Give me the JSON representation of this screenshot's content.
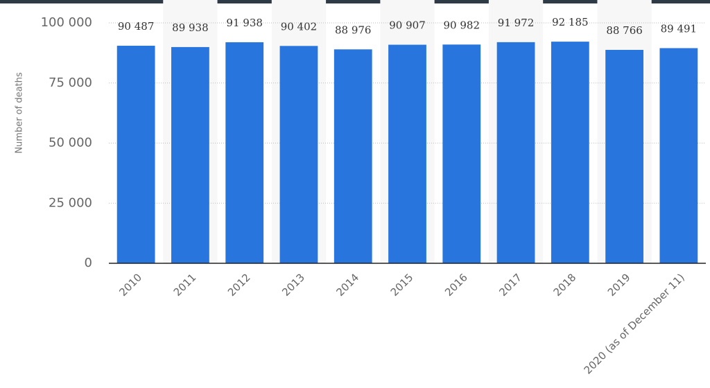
{
  "chart_data": {
    "type": "bar",
    "y_label": "Number of deaths",
    "categories": [
      "2010",
      "2011",
      "2012",
      "2013",
      "2014",
      "2015",
      "2016",
      "2017",
      "2018",
      "2019",
      "2020 (as of December 11)"
    ],
    "values": [
      90487,
      89938,
      91938,
      90402,
      88976,
      90907,
      90982,
      91972,
      92185,
      88766,
      89491
    ],
    "value_labels": [
      "90 487",
      "89 938",
      "91 938",
      "90 402",
      "88 976",
      "90 907",
      "90 982",
      "91 972",
      "92 185",
      "88 766",
      "89 491"
    ],
    "color": "#2876dd",
    "ylim": [
      0,
      100000
    ],
    "yticks": [
      0,
      {
        "value": 25000,
        "label": "25 000"
      },
      {
        "value": 50000,
        "label": "50 000"
      },
      {
        "value": 75000,
        "label": "75 000"
      },
      {
        "value": 100000,
        "label": "100 000"
      }
    ],
    "grid": true
  }
}
